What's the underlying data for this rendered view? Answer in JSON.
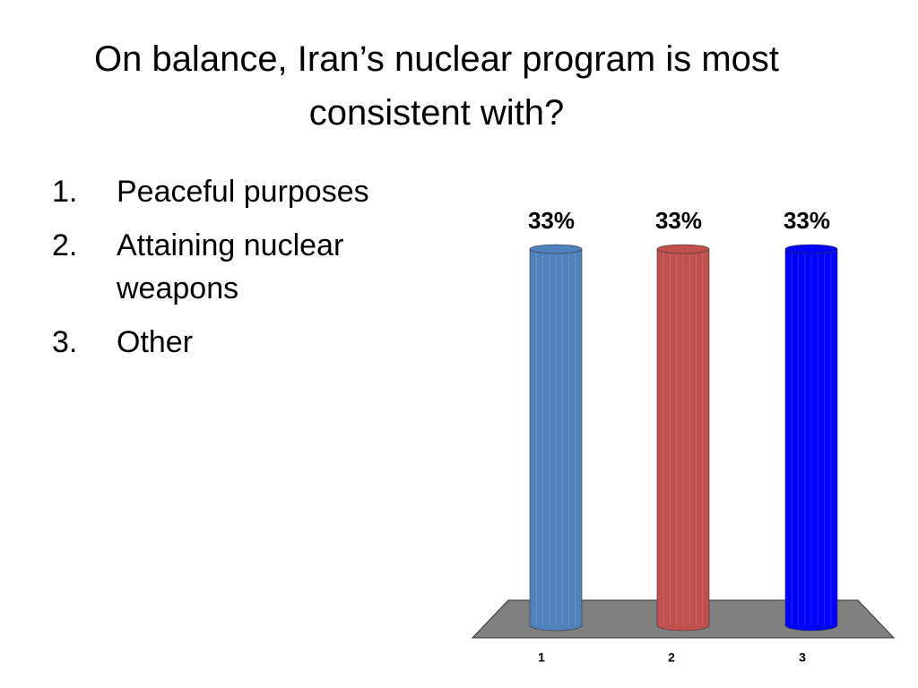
{
  "slide": {
    "title": "On balance, Iran’s nuclear program is most consistent with?",
    "list": [
      {
        "marker": "1.",
        "text": "Peaceful purposes"
      },
      {
        "marker": "2.",
        "text": "Attaining nuclear weapons"
      },
      {
        "marker": "3.",
        "text": "Other"
      }
    ]
  },
  "chart_data": {
    "type": "bar",
    "categories": [
      "1",
      "2",
      "3"
    ],
    "values": [
      33,
      33,
      33
    ],
    "value_labels": [
      "33%",
      "33%",
      "33%"
    ],
    "colors": [
      "#4f81bd",
      "#c0504d",
      "#0000ff"
    ]
  }
}
